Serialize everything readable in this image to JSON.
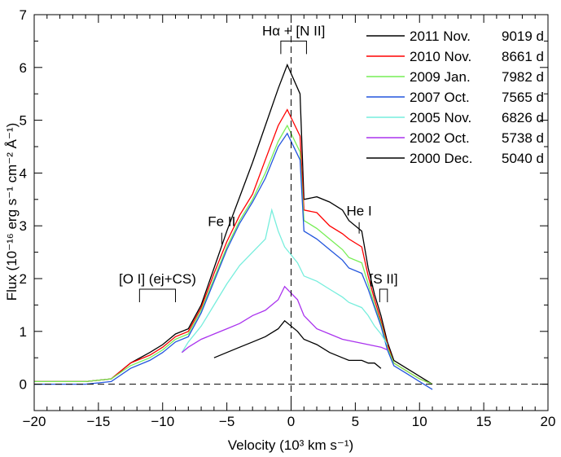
{
  "chart_data": {
    "type": "line",
    "title": "",
    "xlabel": "Velocity (10³ km s⁻¹)",
    "ylabel": "Flux (10⁻¹⁶ erg s⁻¹ cm⁻² Å⁻¹)",
    "xlim": [
      -20,
      20
    ],
    "ylim": [
      -0.5,
      7
    ],
    "xticks": [
      -20,
      -15,
      -10,
      -5,
      0,
      5,
      10,
      15,
      20
    ],
    "yticks": [
      0,
      1,
      2,
      3,
      4,
      5,
      6,
      7
    ],
    "legend_position": "top-right",
    "series": [
      {
        "name": "2011 Nov.",
        "days": "9019 d",
        "color": "#000000",
        "x": [
          -20,
          -18,
          -16,
          -14,
          -12.5,
          -11,
          -10,
          -9,
          -8,
          -7,
          -6,
          -5,
          -4,
          -3,
          -2,
          -1,
          -0.3,
          0.7,
          1,
          2,
          3,
          4,
          4.5,
          5.5,
          6,
          6.5,
          7,
          7.5,
          8,
          9,
          10,
          11
        ],
        "y": [
          0.05,
          0.05,
          0.05,
          0.1,
          0.4,
          0.6,
          0.75,
          0.95,
          1.05,
          1.5,
          2.2,
          2.9,
          3.55,
          4.2,
          4.9,
          5.6,
          6.05,
          5.5,
          3.5,
          3.55,
          3.45,
          3.3,
          3.1,
          2.9,
          2.2,
          1.7,
          1.3,
          0.8,
          0.45,
          0.3,
          0.15,
          0.0
        ]
      },
      {
        "name": "2010 Nov.",
        "days": "8661 d",
        "color": "#ff0000",
        "x": [
          -20,
          -18,
          -16,
          -14,
          -12.5,
          -11,
          -10,
          -9,
          -8,
          -7,
          -6,
          -5,
          -4,
          -3,
          -2,
          -1,
          -0.3,
          0.7,
          1,
          2,
          3,
          4,
          4.5,
          5.5,
          6,
          6.5,
          7,
          7.5,
          8,
          9,
          10,
          11
        ],
        "y": [
          0.05,
          0.05,
          0.05,
          0.1,
          0.4,
          0.55,
          0.7,
          0.9,
          1.0,
          1.45,
          2.1,
          2.7,
          3.2,
          3.6,
          4.25,
          4.9,
          5.2,
          4.7,
          3.3,
          3.25,
          3.0,
          2.85,
          2.75,
          2.6,
          2.05,
          1.6,
          1.2,
          0.75,
          0.4,
          0.25,
          0.1,
          0.0
        ]
      },
      {
        "name": "2009 Jan.",
        "days": "7982 d",
        "color": "#77ee55",
        "x": [
          -20,
          -18,
          -16,
          -14,
          -12.5,
          -11,
          -10,
          -9,
          -8,
          -7,
          -6,
          -5,
          -4,
          -3,
          -2,
          -1,
          -0.3,
          0.7,
          1,
          2,
          3,
          4,
          4.5,
          5.5,
          6,
          6.5,
          7,
          7.5,
          8,
          9,
          10,
          11
        ],
        "y": [
          0.05,
          0.05,
          0.05,
          0.1,
          0.35,
          0.5,
          0.65,
          0.85,
          0.95,
          1.4,
          2.0,
          2.6,
          3.1,
          3.5,
          4.0,
          4.6,
          4.9,
          4.4,
          3.1,
          2.95,
          2.75,
          2.55,
          2.4,
          2.3,
          1.9,
          1.5,
          1.15,
          0.7,
          0.4,
          0.25,
          0.1,
          0.0
        ]
      },
      {
        "name": "2007 Oct.",
        "days": "7565 d",
        "color": "#2255dd",
        "x": [
          -20,
          -18,
          -16,
          -14,
          -12.5,
          -11,
          -10,
          -9,
          -8,
          -7,
          -6,
          -5,
          -4,
          -3,
          -2,
          -1,
          -0.3,
          0.7,
          1,
          2,
          3,
          4,
          4.5,
          5.5,
          6,
          6.5,
          7,
          7.5,
          8,
          9,
          10,
          11
        ],
        "y": [
          0.0,
          0.0,
          0.0,
          0.05,
          0.3,
          0.45,
          0.6,
          0.8,
          0.9,
          1.35,
          1.95,
          2.55,
          3.05,
          3.45,
          3.9,
          4.5,
          4.75,
          4.25,
          2.9,
          2.75,
          2.55,
          2.35,
          2.2,
          2.1,
          1.8,
          1.45,
          1.1,
          0.65,
          0.35,
          0.2,
          0.05,
          -0.1
        ]
      },
      {
        "name": "2005 Nov.",
        "days": "6826 d",
        "color": "#77eedd",
        "x": [
          -8.5,
          -8,
          -7,
          -6,
          -5,
          -4,
          -3,
          -2,
          -1.5,
          -1,
          -0.5,
          0.5,
          1,
          2,
          3,
          4,
          4.5,
          5.5,
          6,
          6.5,
          7,
          7.5
        ],
        "y": [
          0.6,
          0.8,
          1.1,
          1.5,
          1.9,
          2.25,
          2.5,
          2.75,
          3.3,
          2.9,
          2.6,
          2.3,
          2.05,
          1.95,
          1.8,
          1.65,
          1.55,
          1.45,
          1.3,
          1.1,
          0.95,
          0.75
        ]
      },
      {
        "name": "2002 Oct.",
        "days": "5738 d",
        "color": "#aa33ee",
        "x": [
          -8.5,
          -8,
          -7,
          -6,
          -5,
          -4,
          -3,
          -2,
          -1,
          -0.5,
          0.5,
          1,
          2,
          3,
          4,
          5,
          6,
          7,
          7.5
        ],
        "y": [
          0.6,
          0.7,
          0.85,
          0.95,
          1.05,
          1.15,
          1.3,
          1.4,
          1.6,
          1.85,
          1.6,
          1.3,
          1.05,
          0.95,
          0.85,
          0.8,
          0.75,
          0.7,
          0.65
        ]
      },
      {
        "name": "2000 Dec.",
        "days": "5040 d",
        "color": "#000000",
        "x": [
          -6,
          -5,
          -4,
          -3,
          -2,
          -1,
          -0.5,
          0.5,
          1,
          2,
          3,
          4,
          4.5,
          5.5,
          6,
          6.5,
          7
        ],
        "y": [
          0.5,
          0.6,
          0.7,
          0.8,
          0.9,
          1.05,
          1.2,
          1.0,
          0.85,
          0.75,
          0.6,
          0.5,
          0.45,
          0.45,
          0.4,
          0.4,
          0.3
        ]
      }
    ],
    "reference_lines": [
      {
        "orientation": "horizontal",
        "value": 0,
        "style": "dashed"
      },
      {
        "orientation": "vertical",
        "value": 0,
        "style": "dashed"
      }
    ],
    "annotations": [
      {
        "label": "Hα + [N II]",
        "x_range": [
          -0.8,
          1.2
        ],
        "y": 6.5
      },
      {
        "label": "[O I] (ej+CS)",
        "x_range": [
          -11.8,
          -9.0
        ],
        "y": 1.8
      },
      {
        "label": "Fe II",
        "x": -5.4,
        "y": 2.9
      },
      {
        "label": "He I",
        "x": 5.3,
        "y": 3.1
      },
      {
        "label": "[S II]",
        "x_range": [
          6.9,
          7.5
        ],
        "y": 1.8
      }
    ]
  }
}
